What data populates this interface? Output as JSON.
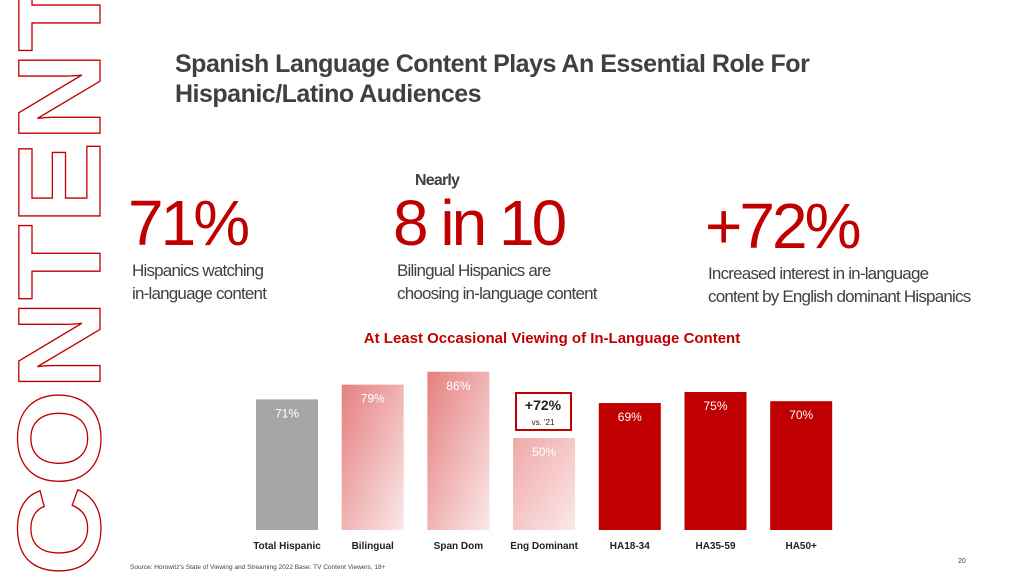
{
  "vertical_label": "CONTENT",
  "title": [
    "Spanish Language Content Plays An Essential Role For",
    "Hispanic/Latino Audiences"
  ],
  "stats": [
    {
      "value": "71%",
      "caption": [
        "Hispanics watching",
        "in-language content"
      ]
    },
    {
      "prefix": "Nearly",
      "value": "8 in 10",
      "caption": [
        "Bilingual Hispanics are",
        "choosing in-language content"
      ]
    },
    {
      "value": "+72%",
      "caption": [
        "Increased interest in in-language",
        "content by English dominant Hispanics"
      ]
    }
  ],
  "chart_data": {
    "type": "bar",
    "title": "At Least Occasional Viewing of In-Language Content",
    "categories": [
      "Total Hispanic",
      "Bilingual",
      "Span Dom",
      "Eng Dominant",
      "HA18-34",
      "HA35-59",
      "HA50+"
    ],
    "values": [
      71,
      79,
      86,
      50,
      69,
      75,
      70
    ],
    "value_labels": [
      "71%",
      "79%",
      "86%",
      "50%",
      "69%",
      "75%",
      "70%"
    ],
    "colors": [
      "#a6a6a6",
      "#e57f7f",
      "#e57f7f",
      "#f0a8a8",
      "#c00000",
      "#c00000",
      "#c00000"
    ],
    "gradient": [
      false,
      true,
      true,
      true,
      false,
      false,
      false
    ],
    "annotation": {
      "text": "+72%",
      "subtext": "vs. '21"
    }
  },
  "source": "Source: Horowitz's State of Viewing and Streaming 2022 Base: TV Content Viewers, 18+",
  "page_number": "20"
}
